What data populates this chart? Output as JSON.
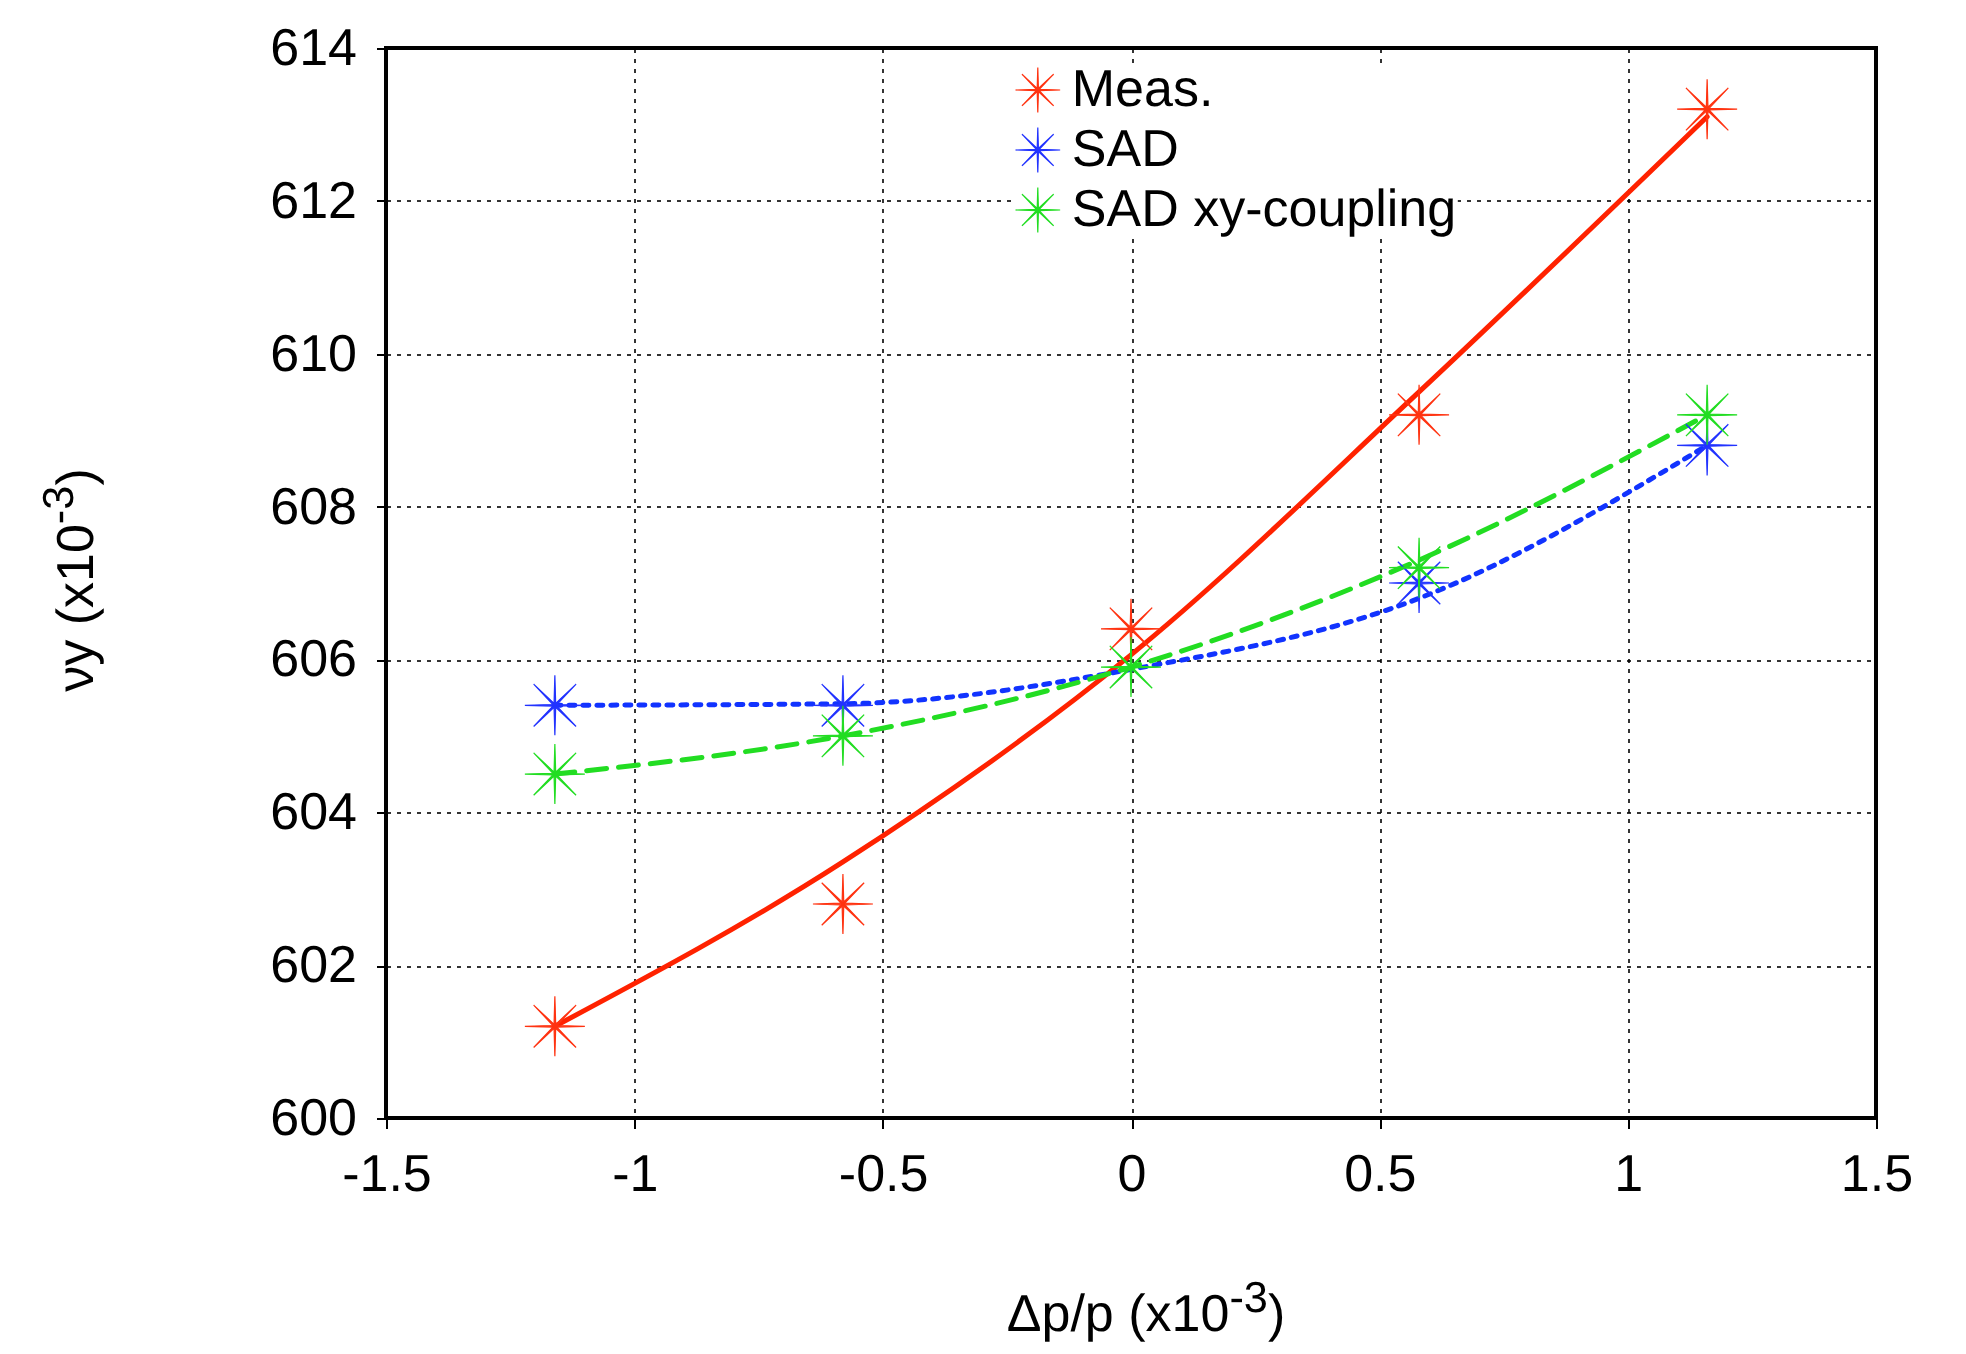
{
  "chart_data": {
    "type": "scatter",
    "xlabel": "Δp/p (x10$^{-3}$)",
    "ylabel": "νy (x10$^{-3}$)",
    "xlim": [
      -1.5,
      1.5
    ],
    "xticks": [
      -1.5,
      -1,
      -0.5,
      0,
      0.5,
      1,
      1.5
    ],
    "ylim": [
      600,
      614
    ],
    "yticks": [
      600,
      602,
      604,
      606,
      608,
      610,
      612,
      614
    ],
    "grid": true,
    "legend": "top",
    "marker": "star",
    "x": [
      -1.16,
      -0.58,
      0,
      0.58,
      1.16
    ],
    "series": [
      {
        "name": "Meas.",
        "color": "#ff3311",
        "values": [
          601.2,
          602.8,
          606.4,
          609.2,
          613.2
        ]
      },
      {
        "name": "SAD",
        "color": "#2233ff",
        "values": [
          605.4,
          605.4,
          null,
          607.0,
          608.8
        ]
      },
      {
        "name": "SAD xy-coupling",
        "color": "#22dd22",
        "values": [
          604.5,
          605.0,
          605.9,
          607.2,
          609.2
        ]
      },
      {
        "type": "line",
        "color": "#ff2200",
        "line_style": "solid",
        "marker": "none",
        "values": [
          601.2,
          603.35,
          606.06,
          609.5,
          613.1
        ]
      },
      {
        "type": "line",
        "color": "#1133ff",
        "line_style": "dotted",
        "marker": "none",
        "values": [
          605.4,
          605.42,
          605.87,
          606.8,
          608.8
        ]
      },
      {
        "type": "line",
        "color": "#22dd22",
        "line_style": "dashed",
        "marker": "none",
        "values": [
          604.5,
          605.0,
          605.9,
          607.3,
          609.2
        ]
      }
    ]
  }
}
